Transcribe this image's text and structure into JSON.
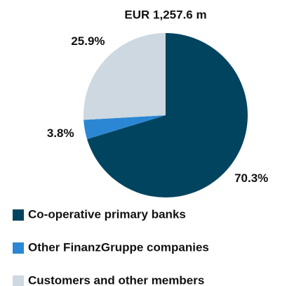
{
  "chart_data": {
    "type": "pie",
    "title": "EUR  1,257.6 m",
    "categories": [
      "Co-operative primary banks",
      "Other FinanzGruppe companies",
      "Customers and other members"
    ],
    "values": [
      70.3,
      3.8,
      25.9
    ],
    "value_labels": [
      "70.3%",
      "3.8%",
      "25.9%"
    ],
    "colors": [
      "#00445f",
      "#2b87d3",
      "#cdd8e0"
    ],
    "legend": "bottom"
  }
}
